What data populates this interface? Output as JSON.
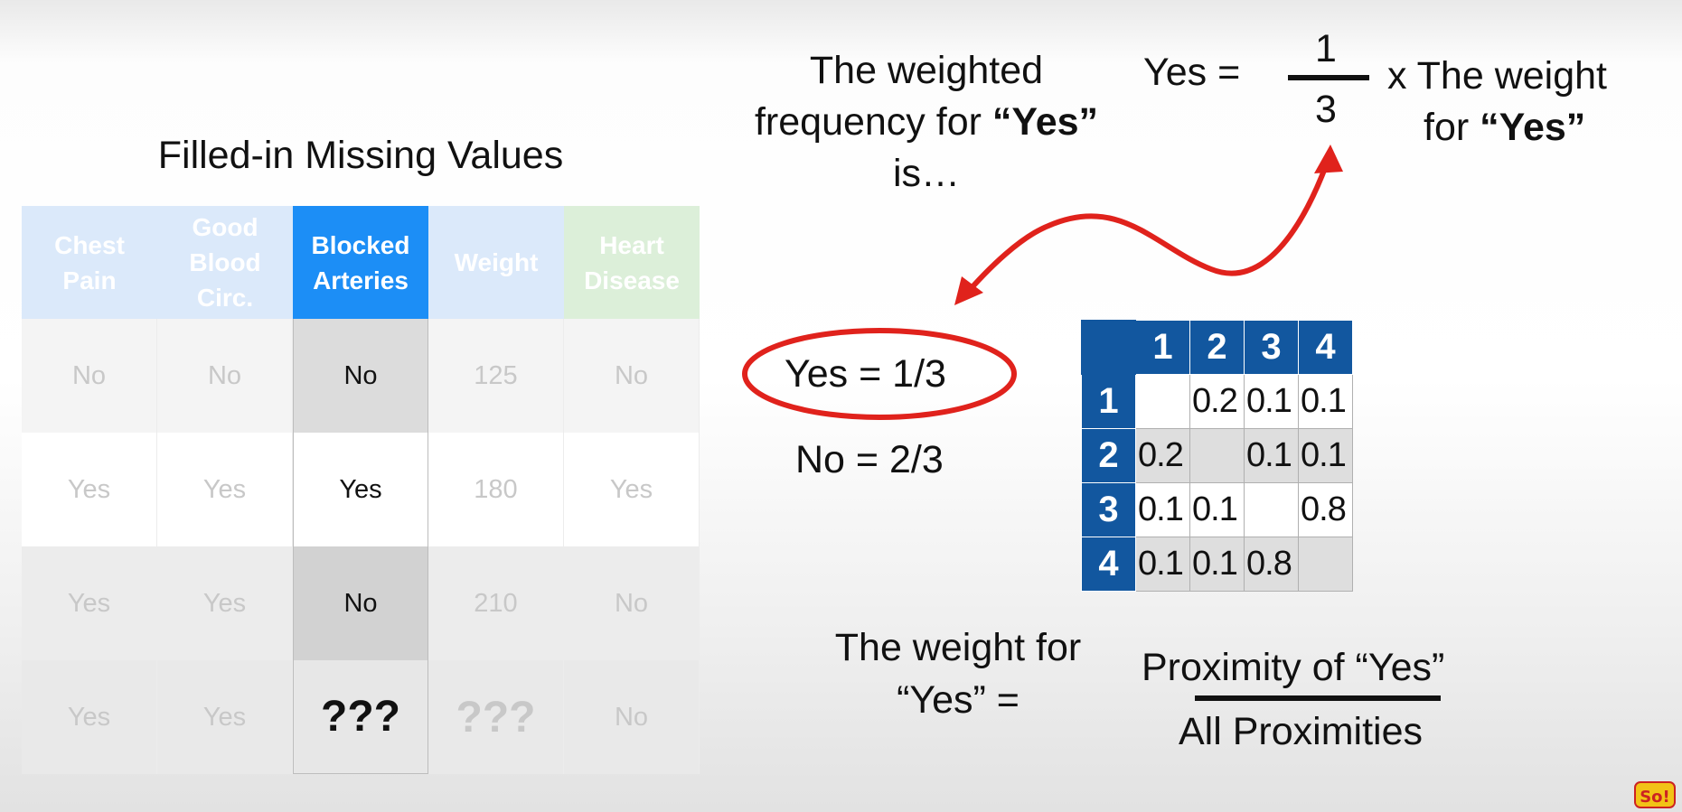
{
  "table": {
    "title": "Filled-in Missing Values",
    "columns": [
      {
        "header": [
          "Chest",
          "Pain"
        ],
        "cells": [
          "No",
          "Yes",
          "Yes",
          "Yes"
        ]
      },
      {
        "header": [
          "Good",
          "Blood",
          "Circ."
        ],
        "cells": [
          "No",
          "Yes",
          "Yes",
          "Yes"
        ]
      },
      {
        "header": [
          "Blocked",
          "Arteries"
        ],
        "cells": [
          "No",
          "Yes",
          "No",
          "???"
        ]
      },
      {
        "header": [
          "Weight"
        ],
        "cells": [
          "125",
          "180",
          "210",
          "???"
        ]
      },
      {
        "header": [
          "Heart",
          "Disease"
        ],
        "cells": [
          "No",
          "Yes",
          "No",
          "No"
        ]
      }
    ]
  },
  "formula_top": {
    "weighted_freq": [
      "The weighted",
      "frequency for ",
      "“Yes”",
      "is…"
    ],
    "yes_equals": "Yes =",
    "numerator": "1",
    "denominator": "3",
    "times_weight": [
      "x The weight",
      "for ",
      "“Yes”"
    ]
  },
  "ratios": {
    "yes": "Yes = 1/3",
    "no": "No = 2/3"
  },
  "matrix": {
    "headers": [
      "1",
      "2",
      "3",
      "4"
    ],
    "rows": [
      [
        "",
        "0.2",
        "0.1",
        "0.1"
      ],
      [
        "0.2",
        "",
        "0.1",
        "0.1"
      ],
      [
        "0.1",
        "0.1",
        "",
        "0.8"
      ],
      [
        "0.1",
        "0.1",
        "0.8",
        ""
      ]
    ]
  },
  "formula_bottom": {
    "label": [
      "The weight for",
      "“Yes” ="
    ],
    "numerator": "Proximity of “Yes”",
    "denominator": "All Proximities"
  },
  "colors": {
    "blocked_header": "#1c8ef6",
    "light_blue_header": "#dbe9fa",
    "green_header": "#dcefd9",
    "matrix_header": "#12579f",
    "annotation_red": "#e0221c"
  },
  "logo": {
    "text": "So!"
  }
}
